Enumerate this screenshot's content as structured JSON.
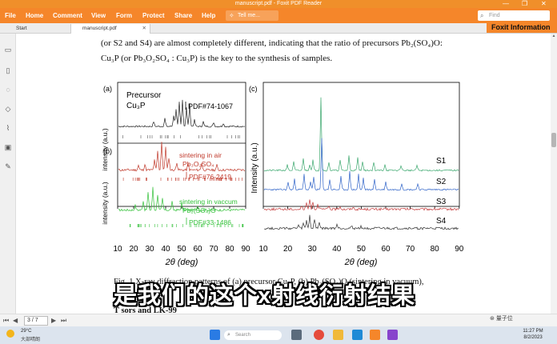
{
  "window": {
    "title": "manuscript.pdf - Foxit PDF Reader",
    "controls": {
      "minimize": "—",
      "restore": "❐",
      "close": "✕"
    }
  },
  "menu": [
    "File",
    "Home",
    "Comment",
    "View",
    "Form",
    "Protect",
    "Share",
    "Help"
  ],
  "tell_me": {
    "placeholder": "Tell me..."
  },
  "find": {
    "placeholder": "Find"
  },
  "tabs": {
    "start": "Start",
    "document": "manuscript.pdf"
  },
  "foxit_info": "Foxit Information",
  "pdf": {
    "line1": "(or S2 and S4) are almost completely different, indicating that the ratio of precursors Pb₂(SO₄)O:",
    "line2": "Cu₃P (or Pb₃O₂SO₄ : Cu₃P) is the key to the synthesis of samples.",
    "caption1": "Fig. 1 X-ray diffraction patterns of (a) precursor Cu₃P, (b) Pb₂(SO₄)O (sintering in vacuum),",
    "caption2": "T                              sors  and  LK-99"
  },
  "figure": {
    "panel_a": {
      "label": "(a)",
      "name": "Precursor",
      "formula": "Cu₃P",
      "pdf": "PDF#74-1067"
    },
    "panel_b": {
      "label": "(b)",
      "air_title": "sintering in air",
      "air_formula": "Pb₃O₂SO₄",
      "air_pdf": "PDF#76-2419",
      "vac_title": "sintering in vaccum",
      "vac_formula": "Pb₂(SO₄)O",
      "vac_pdf": "PDF#33-1486"
    },
    "panel_c": {
      "label": "(c)",
      "series": [
        "S1",
        "S2",
        "S3",
        "S4"
      ]
    },
    "ylabel": "intensity (a.u.)",
    "ylabel_c": "Intensity (a.u.)",
    "xlabel": "2θ (deg)",
    "xticks_left": [
      "10",
      "20",
      "30",
      "40",
      "50",
      "60",
      "70",
      "80",
      "90"
    ],
    "xticks_right": [
      "10",
      "20",
      "30",
      "40",
      "50",
      "60",
      "70",
      "80",
      "90"
    ]
  },
  "colors": {
    "accent": "#f5862a",
    "trace_a": "#222222",
    "trace_air": "#c0392b",
    "trace_vac": "#34c13a",
    "s1": "#3aa76d",
    "s2": "#2f63c8",
    "s3": "#c23a3a",
    "s4": "#333333"
  },
  "subtitle": "是我们的这个x射线衍射结果",
  "status": {
    "page": "3 / 7"
  },
  "watermark": "量子位",
  "taskbar": {
    "temp": "29°C",
    "condition": "大部晴朗",
    "search": "Search",
    "time": "11:27 PM",
    "date": "8/2/2023"
  }
}
